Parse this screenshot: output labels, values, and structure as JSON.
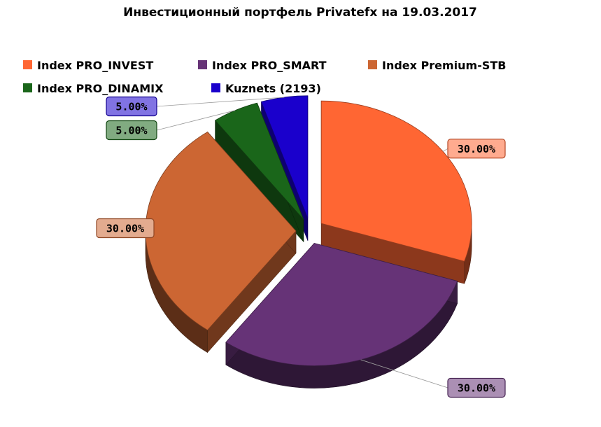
{
  "chart_data": {
    "type": "pie",
    "title": "Инвестиционный портфель Privatefx на 19.03.2017",
    "legend_position": "top",
    "slices": [
      {
        "label": "Index PRO_INVEST",
        "value": 30,
        "display": "30.00%",
        "color": "#ff6633"
      },
      {
        "label": "Index PRO_SMART",
        "value": 30,
        "display": "30.00%",
        "color": "#663377"
      },
      {
        "label": "Index Premium-STB",
        "value": 30,
        "display": "30.00%",
        "color": "#cc6633"
      },
      {
        "label": "Index PRO_DINAMIX",
        "value": 5,
        "display": "5.00%",
        "color": "#1a661a"
      },
      {
        "label": "Kuznets (2193)",
        "value": 5,
        "display": "5.00%",
        "color": "#1a00cc"
      }
    ]
  }
}
